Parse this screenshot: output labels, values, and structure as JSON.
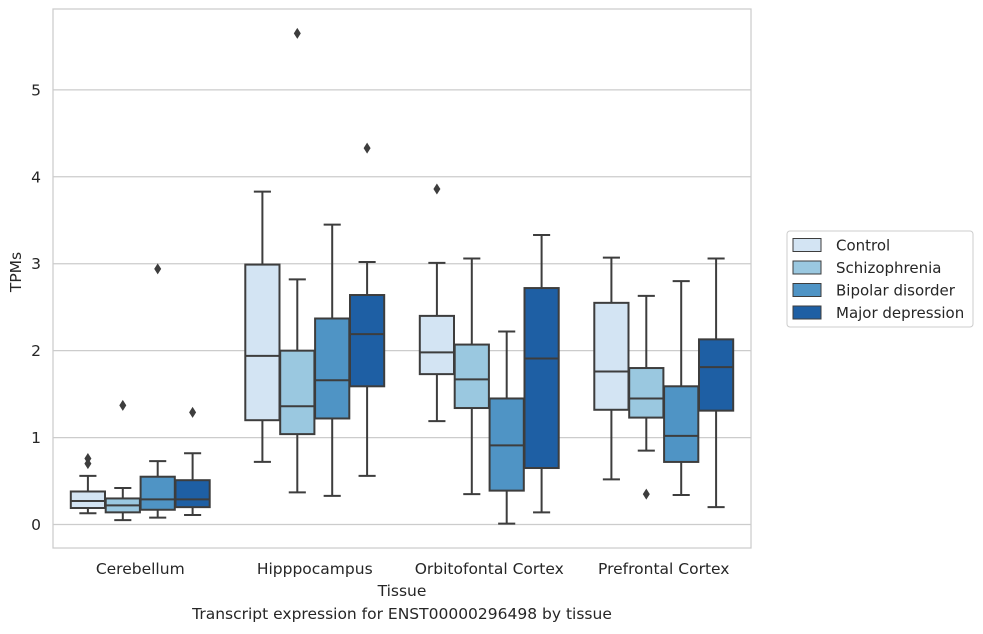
{
  "chart_data": {
    "type": "box",
    "caption": "Transcript expression for ENST00000296498 by tissue",
    "xlabel": "Tissue",
    "ylabel": "TPMs",
    "ylim": [
      -0.27,
      5.93
    ],
    "yticks": [
      0,
      1,
      2,
      3,
      4,
      5
    ],
    "grid": "horizontal",
    "legend_position": "right",
    "categories": [
      "Cerebellum",
      "Hipppocampus",
      "Orbitofontal Cortex",
      "Prefrontal Cortex"
    ],
    "series": [
      {
        "name": "Control",
        "color": "#d3e4f3",
        "boxes": [
          {
            "whislo": 0.13,
            "q1": 0.19,
            "med": 0.27,
            "q3": 0.38,
            "whishi": 0.56,
            "fliers": [
              0.7,
              0.76
            ]
          },
          {
            "whislo": 0.72,
            "q1": 1.2,
            "med": 1.94,
            "q3": 2.99,
            "whishi": 3.83,
            "fliers": []
          },
          {
            "whislo": 1.19,
            "q1": 1.73,
            "med": 1.98,
            "q3": 2.4,
            "whishi": 3.01,
            "fliers": [
              3.86
            ]
          },
          {
            "whislo": 0.52,
            "q1": 1.32,
            "med": 1.76,
            "q3": 2.55,
            "whishi": 3.07,
            "fliers": []
          }
        ]
      },
      {
        "name": "Schizophrenia",
        "color": "#9ac8e0",
        "boxes": [
          {
            "whislo": 0.05,
            "q1": 0.14,
            "med": 0.22,
            "q3": 0.3,
            "whishi": 0.42,
            "fliers": [
              1.37
            ]
          },
          {
            "whislo": 0.37,
            "q1": 1.04,
            "med": 1.36,
            "q3": 2.0,
            "whishi": 2.82,
            "fliers": [
              5.65
            ]
          },
          {
            "whislo": 0.35,
            "q1": 1.34,
            "med": 1.67,
            "q3": 2.07,
            "whishi": 3.06,
            "fliers": []
          },
          {
            "whislo": 0.85,
            "q1": 1.23,
            "med": 1.45,
            "q3": 1.8,
            "whishi": 2.63,
            "fliers": [
              0.35
            ]
          }
        ]
      },
      {
        "name": "Bipolar disorder",
        "color": "#4f94c5",
        "boxes": [
          {
            "whislo": 0.08,
            "q1": 0.17,
            "med": 0.29,
            "q3": 0.55,
            "whishi": 0.73,
            "fliers": [
              2.94
            ]
          },
          {
            "whislo": 0.33,
            "q1": 1.22,
            "med": 1.66,
            "q3": 2.37,
            "whishi": 3.45,
            "fliers": []
          },
          {
            "whislo": 0.01,
            "q1": 0.39,
            "med": 0.91,
            "q3": 1.45,
            "whishi": 2.22,
            "fliers": []
          },
          {
            "whislo": 0.34,
            "q1": 0.72,
            "med": 1.02,
            "q3": 1.59,
            "whishi": 2.8,
            "fliers": []
          }
        ]
      },
      {
        "name": "Major depression",
        "color": "#1e5fa4",
        "boxes": [
          {
            "whislo": 0.11,
            "q1": 0.2,
            "med": 0.29,
            "q3": 0.51,
            "whishi": 0.82,
            "fliers": [
              1.29
            ]
          },
          {
            "whislo": 0.56,
            "q1": 1.59,
            "med": 2.19,
            "q3": 2.64,
            "whishi": 3.02,
            "fliers": [
              4.33
            ]
          },
          {
            "whislo": 0.14,
            "q1": 0.65,
            "med": 1.91,
            "q3": 2.72,
            "whishi": 3.33,
            "fliers": []
          },
          {
            "whislo": 0.2,
            "q1": 1.31,
            "med": 1.81,
            "q3": 2.13,
            "whishi": 3.06,
            "fliers": []
          }
        ]
      }
    ]
  }
}
